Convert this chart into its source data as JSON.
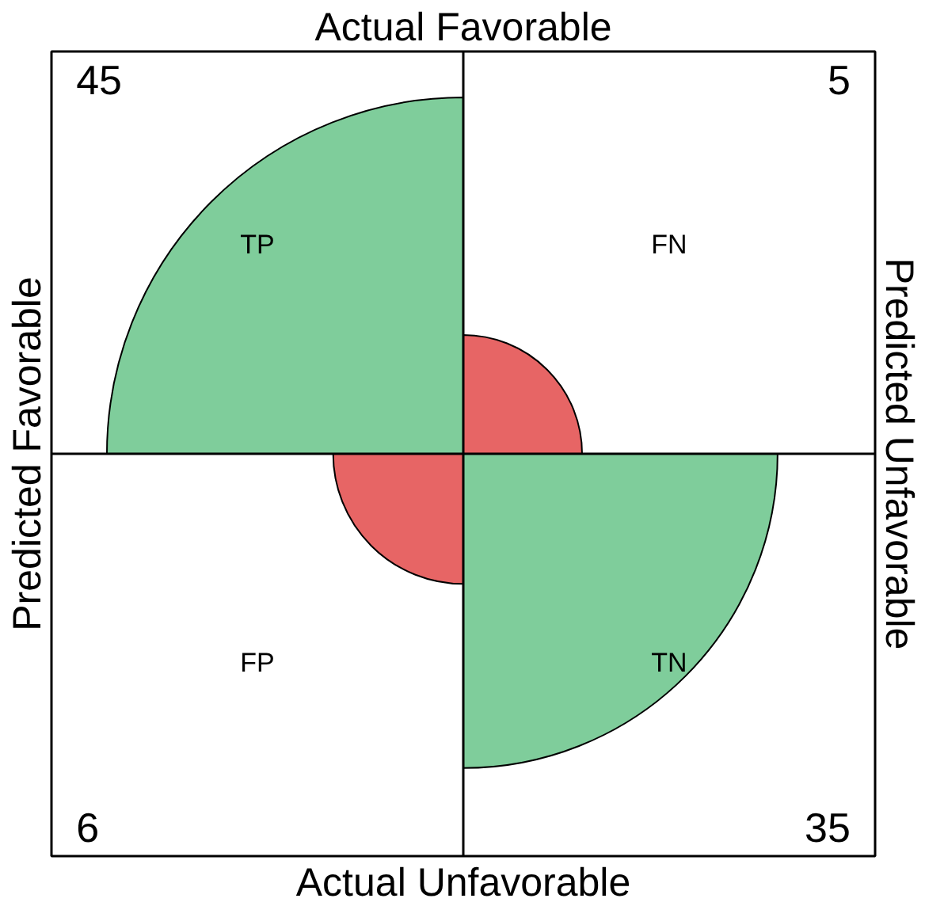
{
  "chart_data": {
    "type": "other",
    "title": "Actual Favorable",
    "xlabel": "Actual Unfavorable",
    "ylabel": "Predicted Favorable",
    "y2label": "Predicted Unfavorable",
    "categories": [
      "TP",
      "FN",
      "FP",
      "TN"
    ],
    "values": [
      45,
      5,
      6,
      35
    ],
    "colors": [
      "#7fcd9b",
      "#e76565",
      "#e76565",
      "#7fcd9b"
    ],
    "data_labels": true
  }
}
